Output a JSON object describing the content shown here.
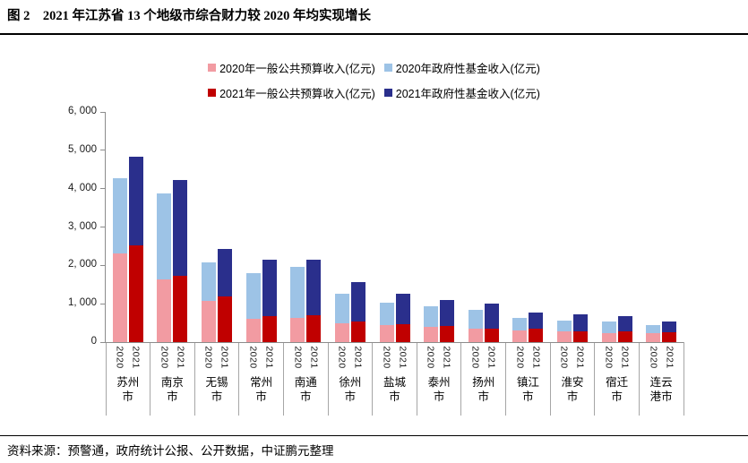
{
  "header": {
    "title": "图 2　2021 年江苏省 13 个地级市综合财力较 2020 年均实现增长"
  },
  "footer": {
    "source": "资料来源：预警通，政府统计公报、公开数据，中证鹏元整理"
  },
  "colors": {
    "pink": "#f29ba2",
    "light_blue": "#9dc3e6",
    "red": "#c00000",
    "navy": "#2a2f8c",
    "axis_gray": "#8c8c8c",
    "separator_gray": "#a6a6a6"
  },
  "chart_data": {
    "type": "bar",
    "stacked": true,
    "unit": "亿元",
    "title": "2021 年江苏省 13 个地级市综合财力较 2020 年均实现增长",
    "xlabel": "",
    "ylabel": "",
    "ylim": [
      0,
      6000
    ],
    "ytick_interval": 1000,
    "ytick_labels": [
      "0",
      "1, 000",
      "2, 000",
      "3, 000",
      "4, 000",
      "5, 000",
      "6, 000"
    ],
    "grid": false,
    "legend_position": "top",
    "categories": [
      "苏州市",
      "南京市",
      "无锡市",
      "常州市",
      "南通市",
      "徐州市",
      "盐城市",
      "泰州市",
      "扬州市",
      "镇江市",
      "淮安市",
      "宿迁市",
      "连云港市"
    ],
    "category_display": [
      "苏州\n市",
      "南京\n市",
      "无锡\n市",
      "常州\n市",
      "南通\n市",
      "徐州\n市",
      "盐城\n市",
      "泰州\n市",
      "扬州\n市",
      "镇江\n市",
      "淮安\n市",
      "宿迁\n市",
      "连云\n港市"
    ],
    "bar_year_labels": [
      "2020",
      "2021"
    ],
    "series": [
      {
        "name": "2020年一般公共预算收入(亿元)",
        "color_key": "pink",
        "bar": "2020",
        "values": [
          2303,
          1638,
          1075,
          617,
          639,
          490,
          432,
          386,
          343,
          312,
          269,
          235,
          233
        ]
      },
      {
        "name": "2020年政府性基金收入(亿元)",
        "color_key": "light_blue",
        "bar": "2020",
        "values": [
          1967,
          2235,
          1006,
          1175,
          1332,
          773,
          605,
          549,
          507,
          327,
          300,
          311,
          211
        ]
      },
      {
        "name": "2021年一般公共预算收入(亿元)",
        "color_key": "red",
        "bar": "2021",
        "values": [
          2510,
          1730,
          1201,
          676,
          702,
          539,
          465,
          422,
          361,
          341,
          289,
          269,
          251
        ]
      },
      {
        "name": "2021年政府性基金收入(亿元)",
        "color_key": "navy",
        "bar": "2021",
        "values": [
          2332,
          2507,
          1230,
          1479,
          1441,
          1034,
          785,
          685,
          652,
          423,
          436,
          409,
          295
        ]
      }
    ]
  }
}
